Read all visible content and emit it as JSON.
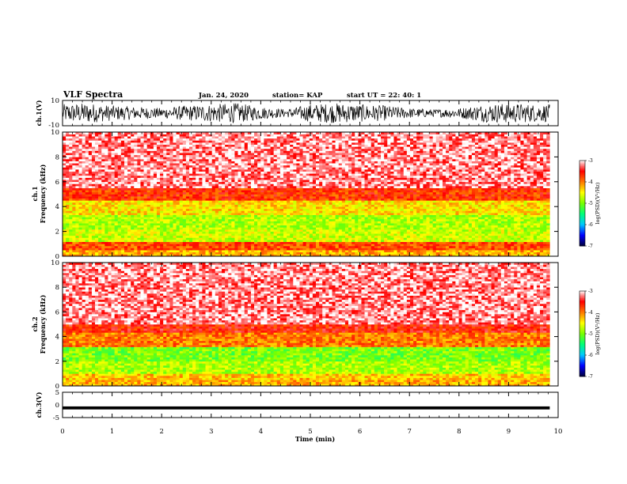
{
  "header": {
    "title": "VLF Spectra",
    "date": "Jan. 24, 2020",
    "station": "station= KAP",
    "start": "start UT =  22: 40: 1"
  },
  "chart_data": [
    {
      "id": "ch1_waveform",
      "type": "line",
      "ylabel": "ch.1(V)",
      "ylim": [
        -10,
        10
      ],
      "yticks": [
        "10",
        "-10"
      ],
      "xlim": [
        0,
        10
      ],
      "data_x_end": 9.83,
      "envelope_note": "broadband noise waveform",
      "x": [
        0,
        0.5,
        1,
        1.5,
        2,
        2.5,
        3,
        3.5,
        4,
        4.5,
        5,
        5.5,
        6,
        6.5,
        7,
        7.5,
        8,
        8.5,
        9,
        9.5,
        9.83
      ],
      "amplitude": [
        7,
        8,
        6,
        5,
        4,
        6,
        7,
        8,
        5,
        3,
        7,
        8,
        7,
        6,
        4,
        3,
        4,
        7,
        8,
        7,
        7
      ]
    },
    {
      "id": "ch1_spectrogram",
      "type": "heatmap",
      "ylabel": "ch.1\nFrequency (kHz)",
      "ylim": [
        0,
        10
      ],
      "yticks": [
        "0",
        "2",
        "4",
        "6",
        "8",
        "10"
      ],
      "xlim": [
        0,
        10
      ],
      "data_x_end": 9.83,
      "colorbar": {
        "label": "log(PSD)(V²/Hz)",
        "range": [
          -7,
          -3
        ],
        "ticks": [
          "-3",
          "-4",
          "-5",
          "-6",
          "-7"
        ]
      },
      "bands_khz": [
        {
          "f0": 0.0,
          "f1": 0.5,
          "level": -4.2
        },
        {
          "f0": 0.5,
          "f1": 1.2,
          "level": -3.8
        },
        {
          "f0": 1.2,
          "f1": 2.2,
          "level": -4.7
        },
        {
          "f0": 2.2,
          "f1": 3.3,
          "level": -4.8
        },
        {
          "f0": 3.3,
          "f1": 4.5,
          "level": -4.4
        },
        {
          "f0": 4.5,
          "f1": 5.5,
          "level": -3.7
        },
        {
          "f0": 5.5,
          "f1": 10.0,
          "level": -3.2
        }
      ]
    },
    {
      "id": "ch2_spectrogram",
      "type": "heatmap",
      "ylabel": "ch.2\nFrequency (kHz)",
      "ylim": [
        0,
        10
      ],
      "yticks": [
        "0",
        "2",
        "4",
        "6",
        "8",
        "10"
      ],
      "xlim": [
        0,
        10
      ],
      "data_x_end": 9.83,
      "colorbar": {
        "label": "log(PSD)(V²/Hz)",
        "range": [
          -7,
          -3
        ],
        "ticks": [
          "-3",
          "-4",
          "-5",
          "-6",
          "-7"
        ]
      },
      "bands_khz": [
        {
          "f0": 0.0,
          "f1": 0.5,
          "level": -4.2
        },
        {
          "f0": 0.5,
          "f1": 1.0,
          "level": -4.3
        },
        {
          "f0": 1.0,
          "f1": 2.0,
          "level": -4.8
        },
        {
          "f0": 2.0,
          "f1": 3.2,
          "level": -5.0
        },
        {
          "f0": 3.2,
          "f1": 4.3,
          "level": -4.0
        },
        {
          "f0": 4.3,
          "f1": 5.0,
          "level": -3.6
        },
        {
          "f0": 5.0,
          "f1": 10.0,
          "level": -3.2
        }
      ]
    },
    {
      "id": "ch3_waveform",
      "type": "line",
      "ylabel": "ch.3(V)",
      "ylim": [
        -5,
        5
      ],
      "yticks": [
        "5",
        "0",
        "-5"
      ],
      "xlim": [
        0,
        10
      ],
      "data_x_end": 9.83,
      "offset": -1.2,
      "amplitude": 0.6
    }
  ],
  "xaxis": {
    "label": "Time (min)",
    "ticks": [
      "0",
      "1",
      "2",
      "3",
      "4",
      "5",
      "6",
      "7",
      "8",
      "9",
      "10"
    ]
  },
  "colors": {
    "axis": "#000000",
    "waveform": "#000000",
    "colormap": [
      "#000066",
      "#0000ff",
      "#00ffff",
      "#00ff00",
      "#ffff00",
      "#ff0000",
      "#ffffff"
    ]
  }
}
